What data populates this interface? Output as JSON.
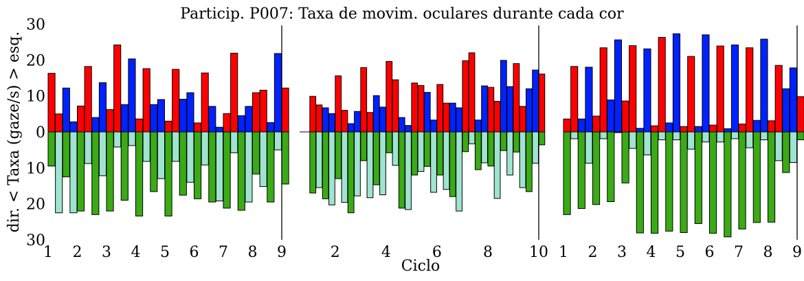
{
  "chart_data": {
    "type": "bar",
    "title": "Particip. P007: Taxa de movim. oculares durante cada cor",
    "xlabel": "Ciclo",
    "ylabel": "dir. < Taxa (gaze/s) > esq.",
    "ylim": [
      -30,
      30
    ],
    "yticks": [
      30,
      20,
      10,
      0,
      10,
      20,
      30
    ],
    "ytick_values": [
      30,
      20,
      10,
      0,
      -10,
      -20,
      -30
    ],
    "colors": {
      "red": "#ff0000",
      "blue": "#0022ff",
      "green": "#3aaa16",
      "teal": "#9fe4d0",
      "edge": "#000000"
    },
    "panels": [
      {
        "xlim": [
          1,
          9
        ],
        "xticks": [
          "1",
          "2",
          "3",
          "4",
          "5",
          "6",
          "7",
          "8",
          "9"
        ],
        "xtick_values": [
          1,
          2,
          3,
          4,
          5,
          6,
          7,
          8,
          9
        ],
        "bars": [
          {
            "cycle": 1,
            "top": [
              16.3,
              5.0,
              12.2,
              2.8
            ],
            "bottom": [
              -9.5,
              -22.5,
              -12.5,
              -22.5
            ]
          },
          {
            "cycle": 2,
            "top": [
              7.2,
              18.2,
              4.0,
              13.7
            ],
            "bottom": [
              -22.0,
              -8.8,
              -23.0,
              -12.2
            ]
          },
          {
            "cycle": 3,
            "top": [
              6.2,
              24.2,
              7.6,
              20.3
            ],
            "bottom": [
              -22.0,
              -4.2,
              -19.0,
              -3.8
            ]
          },
          {
            "cycle": 4,
            "top": [
              3.6,
              17.6,
              7.6,
              9.0
            ],
            "bottom": [
              -23.4,
              -8.2,
              -16.6,
              -13.0
            ]
          },
          {
            "cycle": 5,
            "top": [
              3.0,
              17.4,
              9.1,
              10.9
            ],
            "bottom": [
              -23.4,
              -8.2,
              -17.6,
              -14.0
            ]
          },
          {
            "cycle": 6,
            "top": [
              2.5,
              16.4,
              7.1,
              1.3
            ],
            "bottom": [
              -18.6,
              -9.2,
              -19.5,
              -19.2
            ]
          },
          {
            "cycle": 7,
            "top": [
              5.1,
              21.9,
              4.5,
              7.1
            ],
            "bottom": [
              -21.2,
              -5.8,
              -21.8,
              -19.5
            ]
          },
          {
            "cycle": 8,
            "top": [
              10.9,
              11.6,
              2.6,
              21.8
            ],
            "bottom": [
              -11.7,
              -15.2,
              -19.5,
              -5.0
            ]
          },
          {
            "cycle": 9,
            "top": [
              12.2
            ],
            "bottom": [
              -14.5
            ]
          }
        ]
      },
      {
        "xlim": [
          0.6,
          10
        ],
        "xticks": [
          "2",
          "4",
          "6",
          "8",
          "10"
        ],
        "xtick_values": [
          2,
          4,
          6,
          8,
          10
        ],
        "bars": [
          {
            "cycle": 1,
            "top": [
              9.9,
              7.5,
              6.7,
              5.1
            ],
            "bottom": [
              -17.0,
              -15.5,
              -18.6,
              -20.3
            ]
          },
          {
            "cycle": 2,
            "top": [
              15.6,
              6.0,
              2.3,
              5.7
            ],
            "bottom": [
              -13.0,
              -19.6,
              -22.5,
              -17.8
            ]
          },
          {
            "cycle": 3,
            "top": [
              17.9,
              5.4,
              10.1,
              6.9
            ],
            "bottom": [
              -8.0,
              -18.3,
              -14.7,
              -17.5
            ]
          },
          {
            "cycle": 4,
            "top": [
              19.6,
              14.5,
              4.0,
              1.8
            ],
            "bottom": [
              -5.8,
              -9.3,
              -21.2,
              -21.6
            ]
          },
          {
            "cycle": 5,
            "top": [
              13.6,
              12.9,
              11.0,
              3.3
            ],
            "bottom": [
              -12.0,
              -11.0,
              -9.6,
              -16.8
            ]
          },
          {
            "cycle": 6,
            "top": [
              13.2,
              8.0,
              8.0,
              6.7
            ],
            "bottom": [
              -12.0,
              -16.0,
              -18.0,
              -22.0
            ]
          },
          {
            "cycle": 7,
            "top": [
              19.8,
              22.0,
              3.3,
              12.8
            ],
            "bottom": [
              -5.5,
              -3.3,
              -10.5,
              -8.6
            ]
          },
          {
            "cycle": 8,
            "top": [
              12.4,
              8.5,
              19.9,
              12.6
            ],
            "bottom": [
              -9.5,
              -18.5,
              -5.2,
              -12.0
            ]
          },
          {
            "cycle": 9,
            "top": [
              19.0,
              7.1,
              12.0,
              17.2
            ],
            "bottom": [
              -5.6,
              -15.5,
              -16.6,
              -8.7
            ]
          },
          {
            "cycle": 10,
            "top": [
              16.1
            ],
            "bottom": [
              -3.6
            ]
          }
        ]
      },
      {
        "xlim": [
          1,
          9
        ],
        "xticks": [
          "1",
          "2",
          "3",
          "4",
          "5",
          "6",
          "7",
          "8",
          "9"
        ],
        "xtick_values": [
          1,
          2,
          3,
          4,
          5,
          6,
          7,
          8,
          9
        ],
        "bars": [
          {
            "cycle": 1,
            "top": [
              3.6,
              18.2,
              3.6,
              18.0
            ],
            "bottom": [
              -23.0,
              -1.9,
              -21.3,
              -8.7
            ]
          },
          {
            "cycle": 2,
            "top": [
              4.4,
              23.4,
              8.9,
              25.6
            ],
            "bottom": [
              -20.2,
              -1.9,
              -19.4,
              -0.2
            ]
          },
          {
            "cycle": 3,
            "top": [
              8.6,
              24.0,
              1.0,
              23.1
            ],
            "bottom": [
              -14.2,
              -4.6,
              -28.1,
              -6.4
            ]
          },
          {
            "cycle": 4,
            "top": [
              1.7,
              26.3,
              2.5,
              27.3
            ],
            "bottom": [
              -28.2,
              -2.2,
              -27.6,
              -2.2
            ]
          },
          {
            "cycle": 5,
            "top": [
              1.5,
              21.0,
              1.5,
              27.0
            ],
            "bottom": [
              -28.0,
              -4.8,
              -25.5,
              -2.8
            ]
          },
          {
            "cycle": 6,
            "top": [
              1.9,
              23.9,
              0.9,
              24.2
            ],
            "bottom": [
              -28.2,
              -2.8,
              -29.2,
              -1.9
            ]
          },
          {
            "cycle": 7,
            "top": [
              2.2,
              23.4,
              3.2,
              25.8
            ],
            "bottom": [
              -27.0,
              -4.4,
              -25.2,
              -2.2
            ]
          },
          {
            "cycle": 8,
            "top": [
              3.1,
              18.5,
              12.0,
              17.8
            ],
            "bottom": [
              -25.1,
              -8.0,
              -11.3,
              -8.5
            ]
          },
          {
            "cycle": 9,
            "top": [
              9.8
            ],
            "bottom": [
              -2.2
            ]
          }
        ]
      }
    ]
  }
}
